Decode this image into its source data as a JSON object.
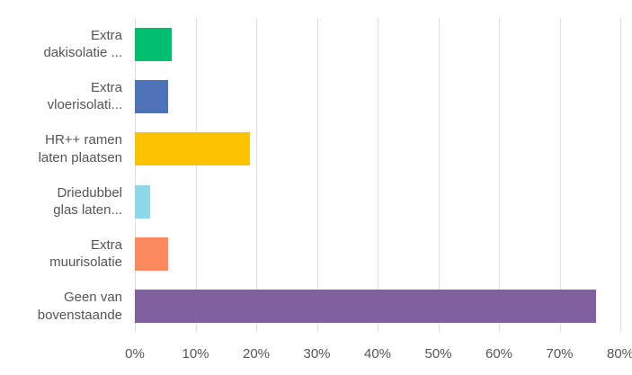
{
  "chart_data": {
    "type": "bar",
    "orientation": "horizontal",
    "title": "",
    "xlabel": "",
    "ylabel": "",
    "grid": true,
    "xlim": [
      0,
      80
    ],
    "x_ticks": [
      "0%",
      "10%",
      "20%",
      "30%",
      "40%",
      "50%",
      "60%",
      "70%",
      "80%"
    ],
    "categories": [
      "Extra\ndakisolatie ...",
      "Extra\nvloerisolati...",
      "HR++ ramen\nlaten plaatsen",
      "Driedubbel\nglas laten...",
      "Extra\nmuurisolatie",
      "Geen van\nbovenstaande"
    ],
    "values": [
      6,
      5.5,
      19,
      2.5,
      5.5,
      76
    ],
    "colors": [
      "#00bf6f",
      "#4d72b8",
      "#fdc300",
      "#8ed9e9",
      "#fb8b5f",
      "#80609f"
    ],
    "label_color": "#555555",
    "tick_color": "#555555",
    "gridline_color": "#e0e0e0"
  }
}
